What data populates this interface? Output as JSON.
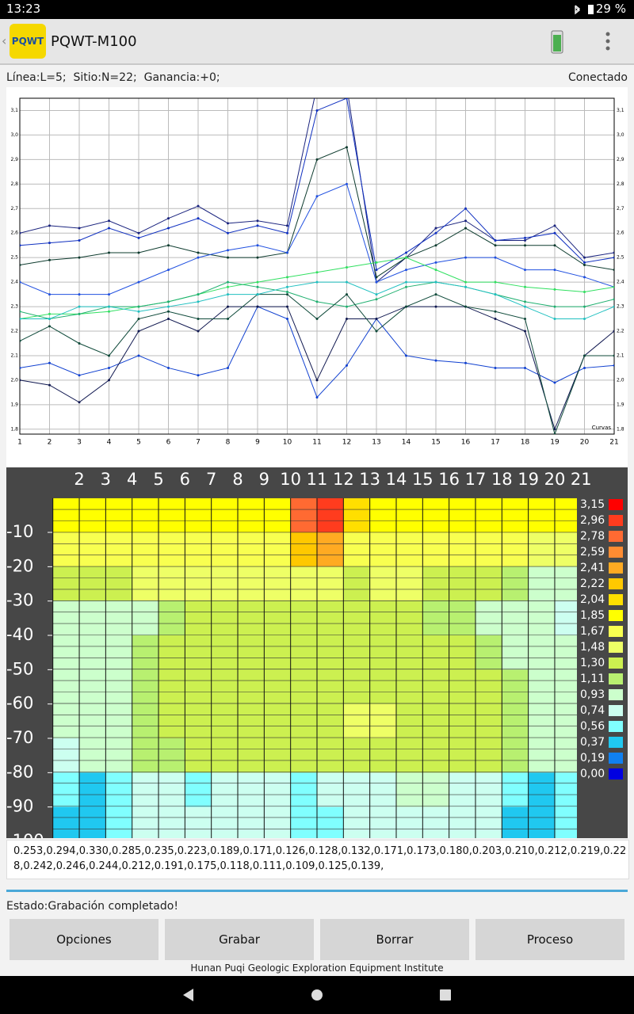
{
  "status_bar": {
    "time": "13:23",
    "battery": "29 %"
  },
  "app_bar": {
    "logo": "PQWT",
    "title": "PQWT-M100"
  },
  "info": {
    "params": "Línea:L=5;  Sitio:N=22;  Ganancia:+0;",
    "connection": "Conectado"
  },
  "chart_data": [
    {
      "type": "line",
      "x": [
        1,
        2,
        3,
        4,
        5,
        6,
        7,
        8,
        9,
        10,
        11,
        12,
        13,
        14,
        15,
        16,
        17,
        18,
        19,
        20,
        21
      ],
      "xlim": [
        1,
        21
      ],
      "xticks": [
        1,
        2,
        3,
        4,
        5,
        6,
        7,
        8,
        9,
        10,
        11,
        12,
        13,
        14,
        15,
        16,
        17,
        18,
        19,
        20,
        21
      ],
      "ylim": [
        1.78,
        3.15
      ],
      "yticks": [
        {
          "value": 1.8,
          "label": "1,8"
        },
        {
          "value": 1.9,
          "label": "1,9"
        },
        {
          "value": 2.0,
          "label": "2,0"
        },
        {
          "value": 2.1,
          "label": "2,1"
        },
        {
          "value": 2.2,
          "label": "2,2"
        },
        {
          "value": 2.3,
          "label": "2,3"
        },
        {
          "value": 2.4,
          "label": "2,4"
        },
        {
          "value": 2.5,
          "label": "2,5"
        },
        {
          "value": 2.6,
          "label": "2,6"
        },
        {
          "value": 2.7,
          "label": "2,7"
        },
        {
          "value": 2.8,
          "label": "2,8"
        },
        {
          "value": 2.9,
          "label": "2,9"
        },
        {
          "value": 3.0,
          "label": "3,0"
        },
        {
          "value": 3.1,
          "label": "3,1"
        }
      ],
      "grid": true,
      "annotation": "Curvas",
      "series": [
        {
          "color": "#1a237e",
          "values": [
            2.6,
            2.63,
            2.62,
            2.65,
            2.6,
            2.66,
            2.71,
            2.64,
            2.65,
            2.63,
            3.2,
            3.2,
            2.4,
            2.5,
            2.62,
            2.65,
            2.57,
            2.57,
            2.63,
            2.5,
            2.52
          ]
        },
        {
          "color": "#1030c0",
          "values": [
            2.55,
            2.56,
            2.57,
            2.62,
            2.58,
            2.62,
            2.66,
            2.6,
            2.63,
            2.6,
            3.1,
            3.15,
            2.45,
            2.52,
            2.6,
            2.7,
            2.57,
            2.58,
            2.6,
            2.48,
            2.5
          ]
        },
        {
          "color": "#0d3b2e",
          "values": [
            2.47,
            2.49,
            2.5,
            2.52,
            2.52,
            2.55,
            2.52,
            2.5,
            2.5,
            2.52,
            2.9,
            2.95,
            2.42,
            2.5,
            2.55,
            2.62,
            2.55,
            2.55,
            2.55,
            2.47,
            2.45
          ]
        },
        {
          "color": "#2050e0",
          "values": [
            2.4,
            2.35,
            2.35,
            2.35,
            2.4,
            2.45,
            2.5,
            2.53,
            2.55,
            2.52,
            2.75,
            2.8,
            2.4,
            2.45,
            2.48,
            2.5,
            2.5,
            2.45,
            2.45,
            2.42,
            2.38
          ]
        },
        {
          "color": "#30e060",
          "values": [
            2.25,
            2.27,
            2.27,
            2.28,
            2.3,
            2.32,
            2.35,
            2.38,
            2.4,
            2.42,
            2.44,
            2.46,
            2.48,
            2.5,
            2.45,
            2.4,
            2.4,
            2.38,
            2.37,
            2.36,
            2.38
          ]
        },
        {
          "color": "#20b070",
          "values": [
            2.28,
            2.25,
            2.27,
            2.3,
            2.3,
            2.32,
            2.35,
            2.4,
            2.38,
            2.36,
            2.32,
            2.3,
            2.33,
            2.38,
            2.4,
            2.38,
            2.35,
            2.32,
            2.3,
            2.3,
            2.33
          ]
        },
        {
          "color": "#1040d0",
          "values": [
            2.05,
            2.07,
            2.02,
            2.05,
            2.1,
            2.05,
            2.02,
            2.05,
            2.3,
            2.25,
            1.93,
            2.06,
            2.25,
            2.1,
            2.08,
            2.07,
            2.05,
            2.05,
            1.99,
            2.05,
            2.06
          ]
        },
        {
          "color": "#101850",
          "values": [
            2.0,
            1.98,
            1.91,
            2.0,
            2.2,
            2.25,
            2.2,
            2.3,
            2.3,
            2.3,
            2.0,
            2.25,
            2.25,
            2.3,
            2.3,
            2.3,
            2.25,
            2.2,
            1.8,
            2.1,
            2.2
          ]
        },
        {
          "color": "#0f4a3a",
          "values": [
            2.16,
            2.22,
            2.15,
            2.1,
            2.25,
            2.28,
            2.25,
            2.25,
            2.35,
            2.35,
            2.25,
            2.35,
            2.2,
            2.3,
            2.35,
            2.3,
            2.28,
            2.25,
            1.78,
            2.1,
            2.1
          ]
        },
        {
          "color": "#20c0c0",
          "values": [
            2.25,
            2.25,
            2.3,
            2.3,
            2.28,
            2.3,
            2.32,
            2.35,
            2.35,
            2.38,
            2.4,
            2.4,
            2.35,
            2.4,
            2.4,
            2.38,
            2.35,
            2.3,
            2.25,
            2.25,
            2.3
          ]
        }
      ]
    },
    {
      "type": "heatmap",
      "xlim": [
        1,
        21
      ],
      "xticks": [
        2,
        3,
        4,
        5,
        6,
        7,
        8,
        9,
        10,
        11,
        12,
        13,
        14,
        15,
        16,
        17,
        18,
        19,
        20,
        21
      ],
      "ylim": [
        0,
        -100
      ],
      "yticks": [
        -10,
        -20,
        -30,
        -40,
        -50,
        -60,
        -70,
        -80,
        -90,
        -100
      ],
      "rows": [
        -5,
        -15,
        -25,
        -35,
        -45,
        -55,
        -65,
        -75,
        -85,
        -95
      ],
      "values": [
        [
          1.9,
          1.9,
          1.9,
          1.95,
          1.95,
          2.0,
          2.0,
          1.95,
          1.95,
          2.9,
          3.1,
          2.2,
          1.9,
          1.9,
          1.95,
          1.95,
          1.9,
          1.9,
          1.85,
          1.85
        ],
        [
          1.8,
          1.8,
          1.75,
          1.75,
          1.8,
          1.8,
          1.8,
          1.8,
          1.8,
          2.4,
          2.5,
          1.8,
          1.75,
          1.75,
          1.75,
          1.75,
          1.7,
          1.7,
          1.65,
          1.65
        ],
        [
          1.4,
          1.4,
          1.45,
          1.5,
          1.5,
          1.5,
          1.5,
          1.5,
          1.5,
          1.55,
          1.5,
          1.45,
          1.5,
          1.5,
          1.45,
          1.45,
          1.4,
          1.2,
          1.1,
          1.0
        ],
        [
          1.0,
          1.0,
          0.95,
          1.1,
          1.2,
          1.3,
          1.3,
          1.3,
          1.3,
          1.3,
          1.3,
          1.3,
          1.3,
          1.3,
          1.2,
          1.15,
          1.1,
          1.0,
          0.95,
          0.9
        ],
        [
          1.0,
          1.0,
          1.1,
          1.2,
          1.3,
          1.3,
          1.35,
          1.4,
          1.3,
          1.3,
          1.3,
          1.3,
          1.3,
          1.35,
          1.3,
          1.3,
          1.2,
          1.1,
          1.0,
          1.0
        ],
        [
          0.95,
          1.0,
          1.1,
          1.2,
          1.3,
          1.35,
          1.4,
          1.35,
          1.35,
          1.4,
          1.35,
          1.3,
          1.3,
          1.35,
          1.3,
          1.35,
          1.3,
          1.2,
          1.0,
          1.0
        ],
        [
          1.0,
          1.0,
          1.1,
          1.2,
          1.3,
          1.3,
          1.35,
          1.35,
          1.35,
          1.4,
          1.45,
          1.5,
          1.5,
          1.4,
          1.35,
          1.35,
          1.3,
          1.2,
          1.1,
          1.0
        ],
        [
          0.9,
          1.0,
          1.1,
          1.2,
          1.25,
          1.3,
          1.3,
          1.3,
          1.3,
          1.3,
          1.35,
          1.4,
          1.35,
          1.3,
          1.3,
          1.3,
          1.3,
          1.2,
          1.1,
          1.0
        ],
        [
          0.6,
          0.5,
          0.7,
          0.9,
          0.85,
          0.7,
          0.85,
          0.9,
          0.9,
          0.7,
          0.8,
          0.9,
          0.9,
          0.95,
          0.95,
          0.9,
          0.85,
          0.6,
          0.5,
          0.7
        ],
        [
          0.55,
          0.5,
          0.6,
          0.8,
          0.85,
          0.8,
          0.8,
          0.85,
          0.75,
          0.6,
          0.7,
          0.8,
          0.75,
          0.8,
          0.85,
          0.85,
          0.75,
          0.5,
          0.4,
          0.6
        ]
      ],
      "legend": [
        {
          "value": 3.15,
          "label": "3,15"
        },
        {
          "value": 2.96,
          "label": "2,96"
        },
        {
          "value": 2.78,
          "label": "2,78"
        },
        {
          "value": 2.59,
          "label": "2,59"
        },
        {
          "value": 2.41,
          "label": "2,41"
        },
        {
          "value": 2.22,
          "label": "2,22"
        },
        {
          "value": 2.04,
          "label": "2,04"
        },
        {
          "value": 1.85,
          "label": "1,85"
        },
        {
          "value": 1.67,
          "label": "1,67"
        },
        {
          "value": 1.48,
          "label": "1,48"
        },
        {
          "value": 1.3,
          "label": "1,30"
        },
        {
          "value": 1.11,
          "label": "1,11"
        },
        {
          "value": 0.93,
          "label": "0,93"
        },
        {
          "value": 0.74,
          "label": "0,74"
        },
        {
          "value": 0.56,
          "label": "0,56"
        },
        {
          "value": 0.37,
          "label": "0,37"
        },
        {
          "value": 0.19,
          "label": "0,19"
        },
        {
          "value": 0,
          "label": "0,00"
        }
      ],
      "colors": [
        "#ff0000",
        "#ff3c1e",
        "#ff6a32",
        "#ff8c32",
        "#ffaa22",
        "#ffc800",
        "#ffdf00",
        "#ffff00",
        "#f8ff50",
        "#eeff66",
        "#ccf050",
        "#b8f070",
        "#ccffcc",
        "#ccfff0",
        "#80ffff",
        "#20c8f0",
        "#1080f0",
        "#0000e0"
      ]
    }
  ],
  "data_text": "0.253,0.294,0.330,0.285,0.235,0.223,0.189,0.171,0.126,0.128,0.132,0.171,0.173,0.180,0.203,0.210,0.212,0.219,0.228,0.242,0.246,0.244,0.212,0.191,0.175,0.118,0.111,0.109,0.125,0.139,",
  "status": "Estado:Grabación completado!",
  "buttons": [
    "Opciones",
    "Grabar",
    "Borrar",
    "Proceso"
  ],
  "footer": "Hunan Puqi Geologic Exploration Equipment Institute"
}
